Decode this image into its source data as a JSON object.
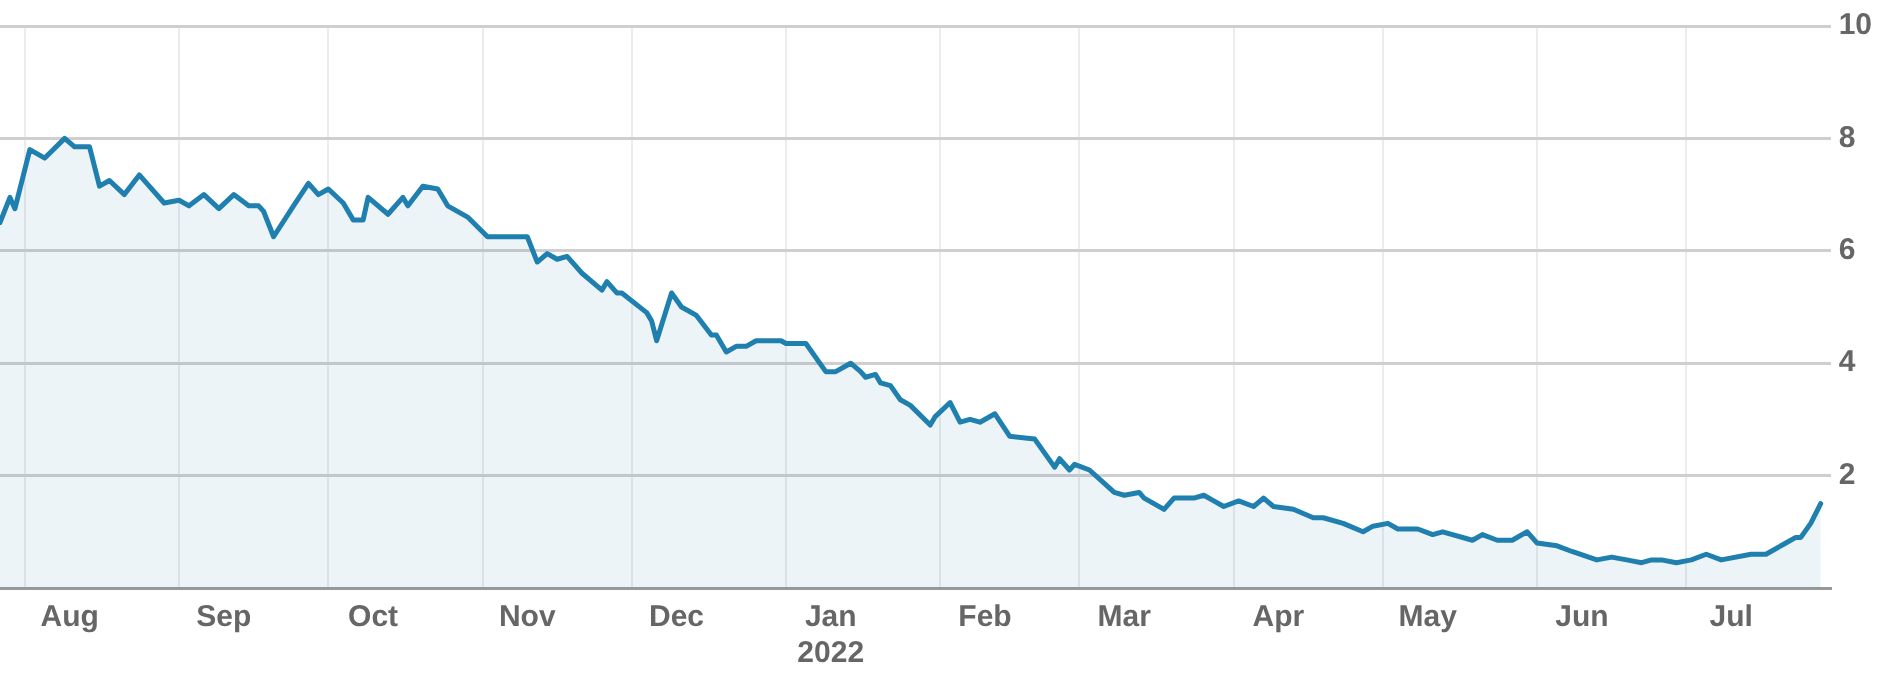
{
  "chart_data": {
    "type": "area",
    "x": [
      "2021-07-27",
      "2021-07-29",
      "2021-07-30",
      "2021-08-02",
      "2021-08-05",
      "2021-08-09",
      "2021-08-11",
      "2021-08-14",
      "2021-08-16",
      "2021-08-18",
      "2021-08-21",
      "2021-08-24",
      "2021-08-26",
      "2021-08-29",
      "2021-09-01",
      "2021-09-03",
      "2021-09-06",
      "2021-09-09",
      "2021-09-12",
      "2021-09-15",
      "2021-09-17",
      "2021-09-18",
      "2021-09-20",
      "2021-09-24",
      "2021-09-27",
      "2021-09-29",
      "2021-10-01",
      "2021-10-04",
      "2021-10-06",
      "2021-10-08",
      "2021-10-09",
      "2021-10-13",
      "2021-10-16",
      "2021-10-17",
      "2021-10-20",
      "2021-10-23",
      "2021-10-25",
      "2021-10-29",
      "2021-11-02",
      "2021-11-07",
      "2021-11-10",
      "2021-11-12",
      "2021-11-14",
      "2021-11-16",
      "2021-11-18",
      "2021-11-21",
      "2021-11-25",
      "2021-11-26",
      "2021-11-28",
      "2021-11-29",
      "2021-12-04",
      "2021-12-05",
      "2021-12-06",
      "2021-12-09",
      "2021-12-11",
      "2021-12-14",
      "2021-12-17",
      "2021-12-18",
      "2021-12-20",
      "2021-12-22",
      "2021-12-24",
      "2021-12-26",
      "2021-12-31",
      "2022-01-01",
      "2022-01-05",
      "2022-01-09",
      "2022-01-11",
      "2022-01-14",
      "2022-01-16",
      "2022-01-17",
      "2022-01-19",
      "2022-01-20",
      "2022-01-22",
      "2022-01-24",
      "2022-01-26",
      "2022-01-30",
      "2022-01-31",
      "2022-02-03",
      "2022-02-05",
      "2022-02-07",
      "2022-02-09",
      "2022-02-12",
      "2022-02-15",
      "2022-02-20",
      "2022-02-24",
      "2022-02-25",
      "2022-02-27",
      "2022-02-28",
      "2022-03-03",
      "2022-03-08",
      "2022-03-10",
      "2022-03-13",
      "2022-03-14",
      "2022-03-18",
      "2022-03-20",
      "2022-03-24",
      "2022-03-26",
      "2022-03-28",
      "2022-03-30",
      "2022-04-02",
      "2022-04-05",
      "2022-04-07",
      "2022-04-09",
      "2022-04-13",
      "2022-04-17",
      "2022-04-19",
      "2022-04-23",
      "2022-04-27",
      "2022-04-29",
      "2022-05-02",
      "2022-05-04",
      "2022-05-08",
      "2022-05-11",
      "2022-05-13",
      "2022-05-19",
      "2022-05-21",
      "2022-05-24",
      "2022-05-27",
      "2022-05-30",
      "2022-06-01",
      "2022-06-05",
      "2022-06-08",
      "2022-06-13",
      "2022-06-16",
      "2022-06-19",
      "2022-06-22",
      "2022-06-24",
      "2022-06-26",
      "2022-06-29",
      "2022-07-02",
      "2022-07-05",
      "2022-07-08",
      "2022-07-14",
      "2022-07-17",
      "2022-07-21",
      "2022-07-23",
      "2022-07-24",
      "2022-07-26",
      "2022-07-28"
    ],
    "series": [
      {
        "color": "#1f7fae",
        "values": [
          6.5,
          6.95,
          6.75,
          7.8,
          7.65,
          8.0,
          7.85,
          7.85,
          7.15,
          7.25,
          7.0,
          7.35,
          7.15,
          6.85,
          6.9,
          6.8,
          7.0,
          6.75,
          7.0,
          6.8,
          6.8,
          6.7,
          6.25,
          6.8,
          7.2,
          7.0,
          7.1,
          6.85,
          6.55,
          6.55,
          6.95,
          6.65,
          6.95,
          6.8,
          7.15,
          7.1,
          6.8,
          6.6,
          6.25,
          6.25,
          6.25,
          5.8,
          5.95,
          5.85,
          5.9,
          5.6,
          5.3,
          5.45,
          5.25,
          5.25,
          4.9,
          4.75,
          4.4,
          5.25,
          5.0,
          4.85,
          4.5,
          4.5,
          4.2,
          4.3,
          4.3,
          4.4,
          4.4,
          4.35,
          4.35,
          3.85,
          3.85,
          4.0,
          3.85,
          3.75,
          3.8,
          3.65,
          3.6,
          3.35,
          3.25,
          2.9,
          3.05,
          3.3,
          2.95,
          3.0,
          2.95,
          3.1,
          2.7,
          2.65,
          2.15,
          2.3,
          2.1,
          2.2,
          2.1,
          1.7,
          1.65,
          1.7,
          1.6,
          1.4,
          1.6,
          1.6,
          1.65,
          1.55,
          1.45,
          1.55,
          1.45,
          1.6,
          1.45,
          1.4,
          1.25,
          1.25,
          1.15,
          1.0,
          1.1,
          1.15,
          1.05,
          1.05,
          0.95,
          1.0,
          0.85,
          0.95,
          0.85,
          0.85,
          1.0,
          0.8,
          0.75,
          0.65,
          0.5,
          0.55,
          0.5,
          0.45,
          0.5,
          0.5,
          0.45,
          0.5,
          0.6,
          0.5,
          0.6,
          0.6,
          0.8,
          0.9,
          0.9,
          1.15,
          1.5
        ]
      }
    ],
    "xlim": [
      "2021-07-27",
      "2022-07-30"
    ],
    "xticks": [
      {
        "value": "2021-08-01",
        "label": null
      },
      {
        "value": "2021-08-10",
        "label": "Aug"
      },
      {
        "value": "2021-09-01",
        "label": null
      },
      {
        "value": "2021-09-10",
        "label": "Sep"
      },
      {
        "value": "2021-10-01",
        "label": null
      },
      {
        "value": "2021-10-10",
        "label": "Oct"
      },
      {
        "value": "2021-11-01",
        "label": null
      },
      {
        "value": "2021-11-10",
        "label": "Nov"
      },
      {
        "value": "2021-12-01",
        "label": null
      },
      {
        "value": "2021-12-10",
        "label": "Dec"
      },
      {
        "value": "2022-01-01",
        "label": null
      },
      {
        "value": "2022-01-10",
        "label": "Jan\n2022"
      },
      {
        "value": "2022-02-01",
        "label": null
      },
      {
        "value": "2022-02-10",
        "label": "Feb"
      },
      {
        "value": "2022-03-01",
        "label": null
      },
      {
        "value": "2022-03-10",
        "label": "Mar"
      },
      {
        "value": "2022-04-01",
        "label": null
      },
      {
        "value": "2022-04-10",
        "label": "Apr"
      },
      {
        "value": "2022-05-01",
        "label": null
      },
      {
        "value": "2022-05-10",
        "label": "May"
      },
      {
        "value": "2022-06-01",
        "label": null
      },
      {
        "value": "2022-06-10",
        "label": "Jun"
      },
      {
        "value": "2022-07-01",
        "label": null
      },
      {
        "value": "2022-07-10",
        "label": "Jul"
      }
    ],
    "ylim": [
      0,
      10
    ],
    "yticks": [
      {
        "value": 0,
        "label": null
      },
      2,
      4,
      6,
      8,
      10
    ],
    "grid": true
  }
}
